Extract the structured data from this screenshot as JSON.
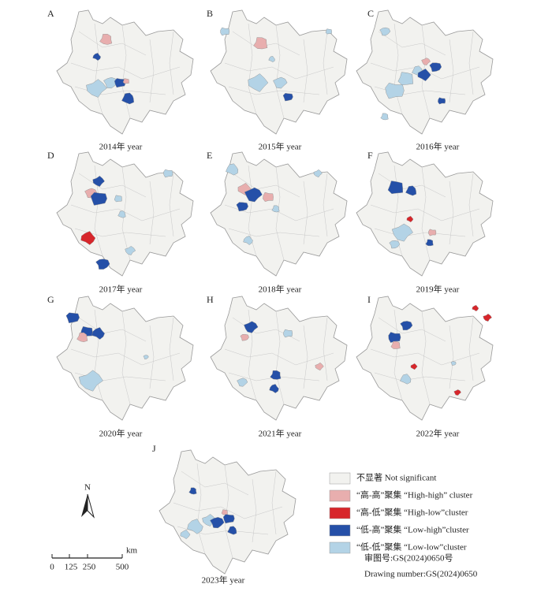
{
  "panels": [
    {
      "letter": "A",
      "caption": "2014年 year"
    },
    {
      "letter": "B",
      "caption": "2015年 year"
    },
    {
      "letter": "C",
      "caption": "2016年 year"
    },
    {
      "letter": "D",
      "caption": "2017年 year"
    },
    {
      "letter": "E",
      "caption": "2018年 year"
    },
    {
      "letter": "F",
      "caption": "2019年 year"
    },
    {
      "letter": "G",
      "caption": "2020年 year"
    },
    {
      "letter": "H",
      "caption": "2021年 year"
    },
    {
      "letter": "I",
      "caption": "2022年 year"
    },
    {
      "letter": "J",
      "caption": "2023年 year"
    }
  ],
  "legend": [
    {
      "label": "不显著  Not significant",
      "color": "#f2f2ef"
    },
    {
      "label": "“高-高”聚集  “High-high” cluster",
      "color": "#e8aeae"
    },
    {
      "label": "“高-低”聚集  “High-low”cluster",
      "color": "#d7262b"
    },
    {
      "label": "“低-高”聚集  “Low-high”cluster",
      "color": "#2550a8"
    },
    {
      "label": "“低-低”聚集  “Low-low”cluster",
      "color": "#b3d3e6"
    }
  ],
  "north": "N",
  "scale": {
    "unit": "km",
    "labels": [
      "0",
      "125",
      "250",
      "500"
    ]
  },
  "notes": [
    "审图号:GS(2024)0650号",
    "Drawing number:GS(2024)0650"
  ]
}
